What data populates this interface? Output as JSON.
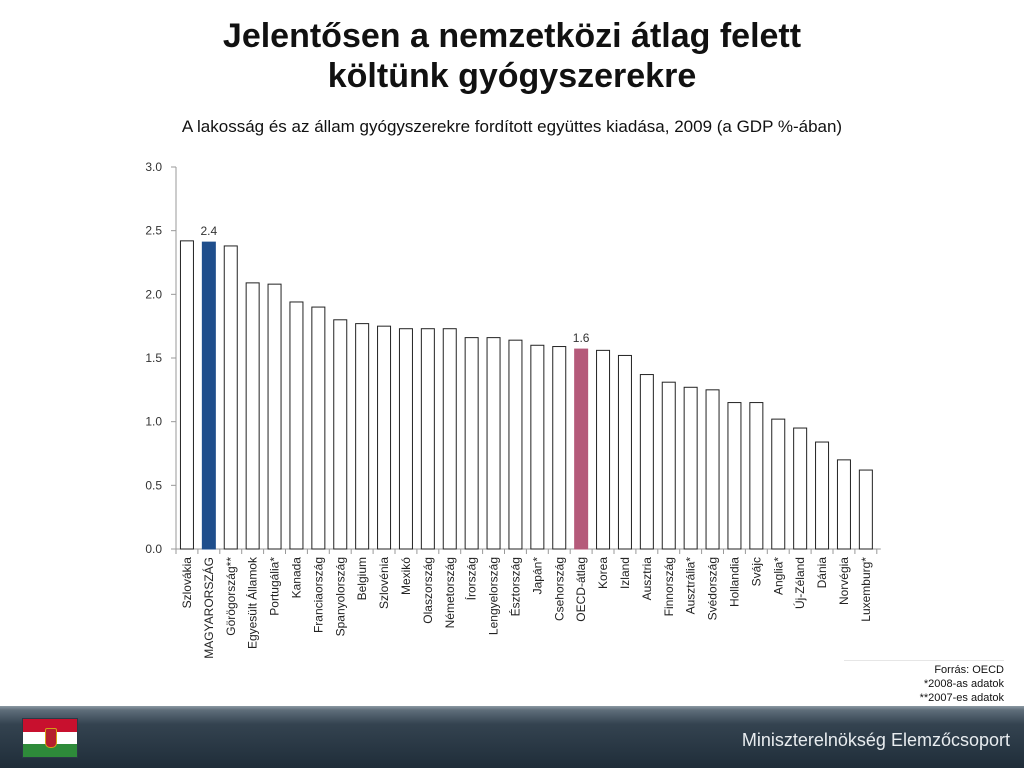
{
  "title": {
    "line1": "Jelentősen a nemzetközi átlag felett",
    "line2": "költünk gyógyszerekre"
  },
  "subtitle": "A lakosság és az állam gyógyszerekre fordított együttes kiadása, 2009 (a GDP %-ában)",
  "chart_data": {
    "type": "bar",
    "categories": [
      "Szlovákia",
      "MAGYARORSZÁG",
      "Görögország**",
      "Egyesült Államok",
      "Portugália*",
      "Kanada",
      "Franciaország",
      "Spanyolország",
      "Belgium",
      "Szlovénia",
      "Mexikó",
      "Olaszország",
      "Németország",
      "Írország",
      "Lengyelország",
      "Észtország",
      "Japán*",
      "Csehország",
      "OECD-átlag",
      "Korea",
      "Izland",
      "Ausztria",
      "Finnország",
      "Ausztrália*",
      "Svédország",
      "Hollandia",
      "Svájc",
      "Anglia*",
      "Új-Zéland",
      "Dánia",
      "Norvégia",
      "Luxemburg*"
    ],
    "values": [
      2.42,
      2.41,
      2.38,
      2.09,
      2.08,
      1.94,
      1.9,
      1.8,
      1.77,
      1.75,
      1.73,
      1.73,
      1.73,
      1.66,
      1.66,
      1.64,
      1.6,
      1.59,
      1.57,
      1.56,
      1.52,
      1.37,
      1.31,
      1.27,
      1.25,
      1.15,
      1.15,
      1.02,
      0.95,
      0.84,
      0.7,
      0.62
    ],
    "ylim": [
      0,
      3.0
    ],
    "yticks": [
      "0.0",
      "0.5",
      "1.0",
      "1.5",
      "2.0",
      "2.5",
      "3.0"
    ],
    "data_labels": [
      {
        "index": 1,
        "text": "2.4"
      },
      {
        "index": 18,
        "text": "1.6"
      }
    ],
    "colors": {
      "default_fill": "#ffffff",
      "default_stroke": "#222222",
      "highlight_hungary": "#1f4e8c",
      "highlight_oecd": "#b55a7a"
    },
    "highlights": {
      "1": "highlight_hungary",
      "18": "highlight_oecd"
    },
    "xlabel": "",
    "ylabel": "",
    "grid": false,
    "legend": "none"
  },
  "notes": {
    "source": "Forrás: OECD",
    "note1": "*2008-as adatok",
    "note2": "**2007-es adatok"
  },
  "footer": {
    "org": "Miniszterelnökség Elemzőcsoport"
  }
}
